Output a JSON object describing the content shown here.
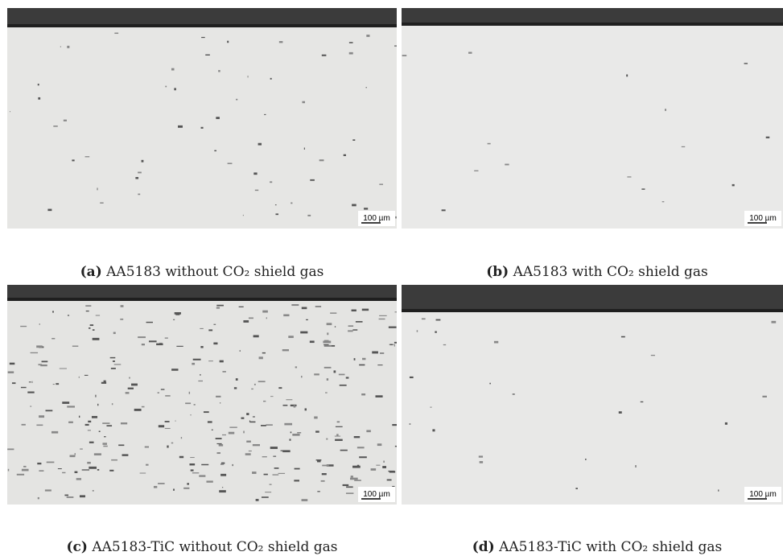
{
  "panels": [
    {
      "label": "(a)",
      "caption": "AA5183 without CO₂ shield gas",
      "scale": "100 µm"
    },
    {
      "label": "(b)",
      "caption": "AA5183 with CO₂ shield gas",
      "scale": "100 µm"
    },
    {
      "label": "(c)",
      "caption": "AA5183-TiC without CO₂ shield gas",
      "scale": "100 µm"
    },
    {
      "label": "(d)",
      "caption": "AA5183-TiC with CO₂ shield gas",
      "scale": "100 µm"
    }
  ]
}
